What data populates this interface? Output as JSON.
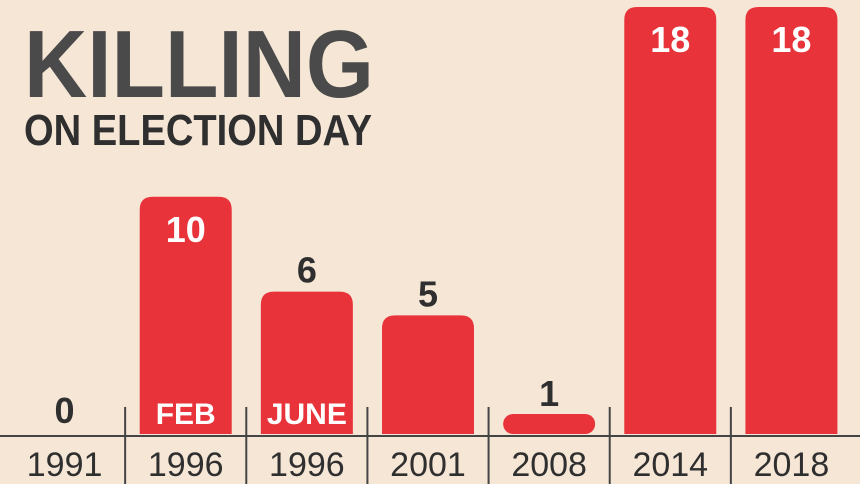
{
  "chart_data": {
    "type": "bar",
    "title": "KILLING",
    "subtitle": "ON ELECTION DAY",
    "categories": [
      "1991",
      "1996",
      "1996",
      "2001",
      "2008",
      "2014",
      "2018"
    ],
    "values": [
      0,
      10,
      6,
      5,
      1,
      18,
      18
    ],
    "inner_labels": [
      "",
      "FEB",
      "JUNE",
      "",
      "",
      "",
      ""
    ],
    "value_labels": [
      "0",
      "10",
      "6",
      "5",
      "1",
      "18",
      "18"
    ],
    "ylim": [
      0,
      18
    ],
    "grid": false,
    "legend": "none",
    "colors": {
      "background": "#f5e6d6",
      "bar": "#e8333a",
      "title": "#4a4a4a",
      "text": "#2f2f2f",
      "label_on_bar": "#ffffff",
      "axis": "#444444"
    }
  }
}
